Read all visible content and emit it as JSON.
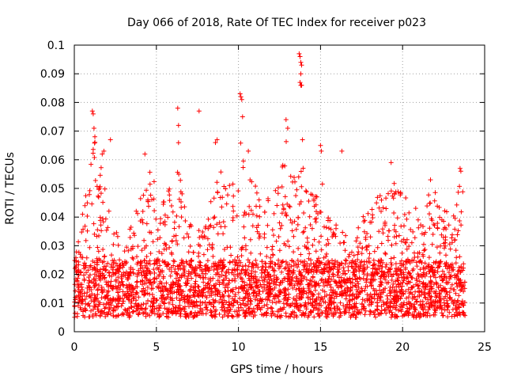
{
  "chart_data": {
    "type": "scatter",
    "title": "Day 066 of 2018, Rate Of TEC Index for receiver p023",
    "xlabel": "GPS time / hours",
    "ylabel": "ROTI / TECUs",
    "xlim": [
      0,
      25
    ],
    "ylim": [
      0,
      0.1
    ],
    "x_ticks": [
      0,
      5,
      10,
      15,
      20,
      25
    ],
    "x_tick_labels": [
      "0",
      "5",
      "10",
      "15",
      "20",
      "25"
    ],
    "y_ticks": [
      0,
      0.01,
      0.02,
      0.03,
      0.04,
      0.05,
      0.06,
      0.07,
      0.08,
      0.09,
      0.1
    ],
    "y_tick_labels": [
      "0",
      "0.01",
      "0.02",
      "0.03",
      "0.04",
      "0.05",
      "0.06",
      "0.07",
      "0.08",
      "0.09",
      "0.1"
    ],
    "grid": true,
    "marker": "+",
    "color": "#ff0000",
    "data_range_x": [
      0,
      23.8
    ],
    "baseline_band": [
      0.005,
      0.025
    ],
    "envelope": [
      [
        0.0,
        0.028
      ],
      [
        0.3,
        0.035
      ],
      [
        0.6,
        0.045
      ],
      [
        0.9,
        0.055
      ],
      [
        1.1,
        0.062
      ],
      [
        1.2,
        0.075
      ],
      [
        1.5,
        0.052
      ],
      [
        1.7,
        0.062
      ],
      [
        2.0,
        0.045
      ],
      [
        2.5,
        0.035
      ],
      [
        3.0,
        0.032
      ],
      [
        3.5,
        0.038
      ],
      [
        4.0,
        0.048
      ],
      [
        4.5,
        0.058
      ],
      [
        5.0,
        0.052
      ],
      [
        5.5,
        0.045
      ],
      [
        6.0,
        0.055
      ],
      [
        6.4,
        0.068
      ],
      [
        6.7,
        0.045
      ],
      [
        7.0,
        0.038
      ],
      [
        7.5,
        0.036
      ],
      [
        8.0,
        0.04
      ],
      [
        8.5,
        0.05
      ],
      [
        9.0,
        0.06
      ],
      [
        9.5,
        0.052
      ],
      [
        10.0,
        0.055
      ],
      [
        10.2,
        0.078
      ],
      [
        10.4,
        0.065
      ],
      [
        10.8,
        0.055
      ],
      [
        11.0,
        0.052
      ],
      [
        11.5,
        0.045
      ],
      [
        12.0,
        0.048
      ],
      [
        12.5,
        0.052
      ],
      [
        12.9,
        0.068
      ],
      [
        13.2,
        0.058
      ],
      [
        13.5,
        0.052
      ],
      [
        13.8,
        0.062
      ],
      [
        14.2,
        0.05
      ],
      [
        14.5,
        0.048
      ],
      [
        15.0,
        0.055
      ],
      [
        15.5,
        0.045
      ],
      [
        16.0,
        0.042
      ],
      [
        16.5,
        0.04
      ],
      [
        17.0,
        0.038
      ],
      [
        17.5,
        0.04
      ],
      [
        18.0,
        0.045
      ],
      [
        18.5,
        0.048
      ],
      [
        19.0,
        0.05
      ],
      [
        19.5,
        0.052
      ],
      [
        20.0,
        0.048
      ],
      [
        20.5,
        0.045
      ],
      [
        21.0,
        0.042
      ],
      [
        21.5,
        0.048
      ],
      [
        22.0,
        0.05
      ],
      [
        22.5,
        0.042
      ],
      [
        23.0,
        0.045
      ],
      [
        23.5,
        0.055
      ],
      [
        23.8,
        0.045
      ]
    ],
    "outliers": [
      [
        0.5,
        0.041
      ],
      [
        1.1,
        0.077
      ],
      [
        1.15,
        0.076
      ],
      [
        1.2,
        0.071
      ],
      [
        1.25,
        0.068
      ],
      [
        1.7,
        0.062
      ],
      [
        1.8,
        0.063
      ],
      [
        2.2,
        0.067
      ],
      [
        4.3,
        0.062
      ],
      [
        6.3,
        0.078
      ],
      [
        6.35,
        0.072
      ],
      [
        7.6,
        0.077
      ],
      [
        8.6,
        0.066
      ],
      [
        8.7,
        0.067
      ],
      [
        10.1,
        0.083
      ],
      [
        10.15,
        0.082
      ],
      [
        10.2,
        0.081
      ],
      [
        10.25,
        0.075
      ],
      [
        10.6,
        0.063
      ],
      [
        12.9,
        0.074
      ],
      [
        13.0,
        0.071
      ],
      [
        13.7,
        0.097
      ],
      [
        13.75,
        0.096
      ],
      [
        13.8,
        0.094
      ],
      [
        13.85,
        0.093
      ],
      [
        13.8,
        0.09
      ],
      [
        13.75,
        0.087
      ],
      [
        13.8,
        0.086
      ],
      [
        13.85,
        0.086
      ],
      [
        13.9,
        0.067
      ],
      [
        15.0,
        0.065
      ],
      [
        15.05,
        0.063
      ],
      [
        16.3,
        0.063
      ],
      [
        19.3,
        0.059
      ],
      [
        21.7,
        0.053
      ],
      [
        23.5,
        0.057
      ],
      [
        23.55,
        0.056
      ]
    ],
    "n_points": 3200
  }
}
